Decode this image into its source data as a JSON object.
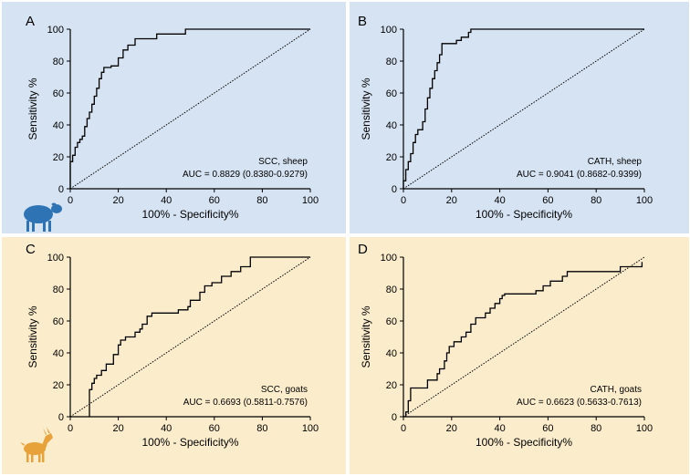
{
  "colors": {
    "sheep_bg": "#d6e3f3",
    "goat_bg": "#fbeccc",
    "sheep_icon": "#2e74b5",
    "goat_icon": "#e8a23c"
  },
  "chart_data": [
    {
      "type": "line",
      "panel_label": "A",
      "xlabel": "100% - Specificity%",
      "ylabel": "Sensitivity %",
      "xlim": [
        0,
        100
      ],
      "ylim": [
        0,
        100
      ],
      "xticks": [
        "0",
        "20",
        "40",
        "60",
        "80",
        "100"
      ],
      "yticks": [
        "0",
        "20",
        "40",
        "60",
        "80",
        "100"
      ],
      "annotation_title": "SCC, sheep",
      "annotation_auc": "AUC = 0.8829 (0.8380-0.9279)",
      "icon": "sheep-icon",
      "background": "sheep",
      "series": [
        {
          "name": "ROC",
          "x": [
            0,
            0,
            1,
            1,
            2,
            2,
            3,
            3,
            4,
            4,
            5,
            5,
            6,
            6,
            7,
            7,
            8,
            8,
            9,
            9,
            10,
            10,
            11,
            11,
            12,
            12,
            13,
            13,
            14,
            14,
            17,
            17,
            19,
            19,
            20,
            20,
            22,
            22,
            24,
            24,
            27,
            27,
            36,
            36,
            48,
            48,
            100
          ],
          "y": [
            0,
            17,
            17,
            21,
            21,
            26,
            26,
            29,
            29,
            31,
            31,
            33,
            33,
            39,
            39,
            44,
            44,
            48,
            48,
            53,
            53,
            58,
            58,
            63,
            63,
            69,
            69,
            73,
            73,
            76,
            76,
            77,
            77,
            77,
            77,
            82,
            82,
            87,
            87,
            90,
            90,
            94,
            94,
            97,
            97,
            100,
            100
          ]
        },
        {
          "name": "Reference",
          "x": [
            0,
            100
          ],
          "y": [
            0,
            100
          ]
        }
      ]
    },
    {
      "type": "line",
      "panel_label": "B",
      "xlabel": "100% - Specificity%",
      "ylabel": "Sensitivity %",
      "xlim": [
        0,
        100
      ],
      "ylim": [
        0,
        100
      ],
      "xticks": [
        "0",
        "20",
        "40",
        "60",
        "80",
        "100"
      ],
      "yticks": [
        "0",
        "20",
        "40",
        "60",
        "80",
        "100"
      ],
      "annotation_title": "CATH, sheep",
      "annotation_auc": "AUC = 0.9041 (0.8682-0.9399)",
      "icon": "",
      "background": "sheep",
      "series": [
        {
          "name": "ROC",
          "x": [
            0,
            0,
            1,
            1,
            2,
            2,
            3,
            3,
            4,
            4,
            5,
            5,
            6,
            6,
            8,
            8,
            9,
            9,
            10,
            10,
            11,
            11,
            12,
            12,
            13,
            13,
            14,
            14,
            15,
            15,
            16,
            16,
            22,
            22,
            24,
            24,
            27,
            27,
            28,
            28,
            100
          ],
          "y": [
            0,
            5,
            5,
            12,
            12,
            17,
            17,
            22,
            22,
            29,
            29,
            34,
            34,
            37,
            37,
            42,
            42,
            50,
            50,
            57,
            57,
            63,
            63,
            69,
            69,
            74,
            74,
            79,
            79,
            84,
            84,
            91,
            91,
            93,
            93,
            95,
            95,
            98,
            98,
            100,
            100
          ]
        },
        {
          "name": "Reference",
          "x": [
            0,
            100
          ],
          "y": [
            0,
            100
          ]
        }
      ]
    },
    {
      "type": "line",
      "panel_label": "C",
      "xlabel": "100% - Specificity%",
      "ylabel": "Sensitivity %",
      "xlim": [
        0,
        100
      ],
      "ylim": [
        0,
        100
      ],
      "xticks": [
        "0",
        "20",
        "40",
        "60",
        "80",
        "100"
      ],
      "yticks": [
        "0",
        "20",
        "40",
        "60",
        "80",
        "100"
      ],
      "annotation_title": "SCC, goats",
      "annotation_auc": "AUC = 0.6693 (0.5811-0.7576)",
      "icon": "goat-icon",
      "background": "goat",
      "series": [
        {
          "name": "ROC",
          "x": [
            8,
            8,
            9,
            9,
            10,
            10,
            11,
            11,
            13,
            13,
            15,
            15,
            18,
            18,
            20,
            20,
            21,
            21,
            23,
            23,
            27,
            27,
            29,
            29,
            30,
            30,
            32,
            32,
            34,
            34,
            45,
            45,
            49,
            49,
            50,
            50,
            54,
            54,
            56,
            56,
            59,
            59,
            63,
            63,
            67,
            67,
            71,
            71,
            75,
            75,
            100
          ],
          "y": [
            0,
            17,
            17,
            21,
            21,
            24,
            24,
            26,
            26,
            29,
            29,
            33,
            33,
            39,
            39,
            45,
            45,
            48,
            48,
            50,
            50,
            53,
            53,
            55,
            55,
            58,
            58,
            63,
            63,
            65,
            65,
            67,
            67,
            69,
            69,
            73,
            73,
            78,
            78,
            82,
            82,
            84,
            84,
            88,
            88,
            91,
            91,
            94,
            94,
            100,
            100
          ]
        },
        {
          "name": "Reference",
          "x": [
            0,
            100
          ],
          "y": [
            0,
            100
          ]
        }
      ]
    },
    {
      "type": "line",
      "panel_label": "D",
      "xlabel": "100% - Specificity%",
      "ylabel": "Sensitivity %",
      "xlim": [
        0,
        100
      ],
      "ylim": [
        0,
        100
      ],
      "xticks": [
        "0",
        "20",
        "40",
        "60",
        "80",
        "100"
      ],
      "yticks": [
        "0",
        "20",
        "40",
        "60",
        "80",
        "100"
      ],
      "annotation_title": "CATH, goats",
      "annotation_auc": "AUC = 0.6623 (0.5633-0.7613)",
      "icon": "",
      "background": "goat",
      "series": [
        {
          "name": "ROC",
          "x": [
            1,
            1,
            2,
            2,
            3,
            3,
            10,
            10,
            14,
            14,
            15,
            15,
            17,
            17,
            18,
            18,
            19,
            19,
            21,
            21,
            24,
            24,
            26,
            26,
            28,
            28,
            30,
            30,
            34,
            34,
            36,
            36,
            38,
            38,
            40,
            40,
            41,
            41,
            42,
            42,
            55,
            55,
            58,
            58,
            61,
            61,
            66,
            66,
            68,
            68,
            90,
            90,
            99,
            99
          ],
          "y": [
            0,
            3,
            3,
            10,
            10,
            18,
            18,
            23,
            23,
            27,
            27,
            30,
            30,
            35,
            35,
            40,
            40,
            44,
            44,
            47,
            47,
            50,
            50,
            53,
            53,
            58,
            58,
            62,
            62,
            65,
            65,
            68,
            68,
            71,
            71,
            74,
            74,
            76,
            76,
            77,
            77,
            79,
            79,
            82,
            82,
            85,
            85,
            88,
            88,
            91,
            91,
            94,
            94,
            97
          ]
        },
        {
          "name": "Reference",
          "x": [
            0,
            100
          ],
          "y": [
            0,
            100
          ]
        }
      ]
    }
  ]
}
